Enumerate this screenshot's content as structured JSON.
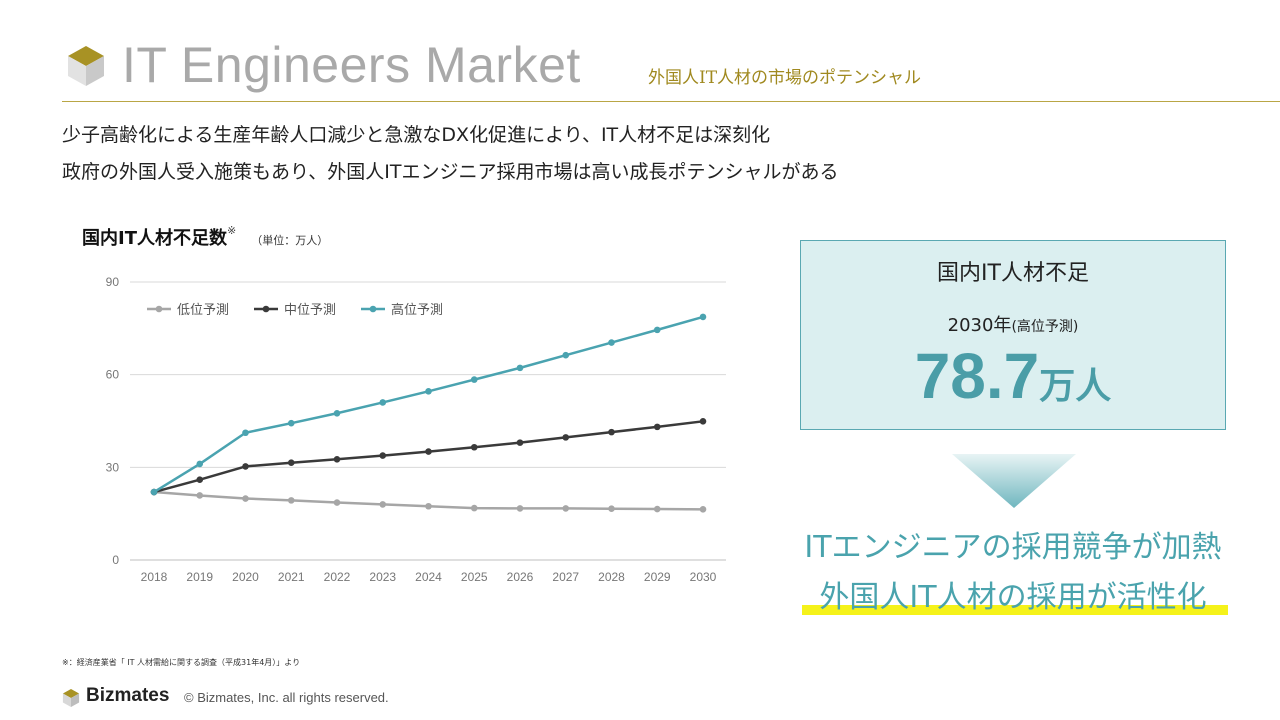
{
  "header": {
    "title": "IT Engineers Market",
    "subtitle": "外国人IT人材の市場のポテンシャル"
  },
  "lead": {
    "line1": "少子高齢化による生産年齢人口減少と急激なDX化促進により、IT人材不足は深刻化",
    "line2": "政府の外国人受入施策もあり、外国人ITエンジニア採用市場は高い成長ポテンシャルがある"
  },
  "chart_header": {
    "title": "国内IT人材不足数",
    "mark": "※",
    "unit": "（単位：万人）"
  },
  "chart_data": {
    "type": "line",
    "categories": [
      "2018",
      "2019",
      "2020",
      "2021",
      "2022",
      "2023",
      "2024",
      "2025",
      "2026",
      "2027",
      "2028",
      "2029",
      "2030"
    ],
    "series": [
      {
        "name": "低位予測",
        "color": "#a6a6a6",
        "values": [
          22.0,
          20.9,
          19.9,
          19.3,
          18.6,
          18.0,
          17.4,
          16.8,
          16.7,
          16.7,
          16.6,
          16.5,
          16.4
        ]
      },
      {
        "name": "中位予測",
        "color": "#3a3a3a",
        "values": [
          22.0,
          26.0,
          30.3,
          31.5,
          32.6,
          33.8,
          35.1,
          36.5,
          38.0,
          39.7,
          41.4,
          43.1,
          44.9
        ]
      },
      {
        "name": "高位予測",
        "color": "#4aa3b0",
        "values": [
          22.0,
          31.1,
          41.2,
          44.3,
          47.5,
          51.0,
          54.6,
          58.4,
          62.2,
          66.3,
          70.4,
          74.5,
          78.7
        ]
      }
    ],
    "ylim": [
      0,
      90
    ],
    "yticks": [
      0,
      30,
      60,
      90
    ],
    "grid": true,
    "legend": "top-left"
  },
  "kpi": {
    "label": "国内IT人材不足",
    "year": "2030年",
    "year_note": "(高位予測)",
    "value": "78.7",
    "unit": "万人"
  },
  "result": {
    "line1": "ITエンジニアの採用競争が加熱",
    "line2": "外国人IT人材の採用が活性化"
  },
  "footer": {
    "source": "※：経済産業省「 IT 人材需給に関する調査（平成31年4月）」より",
    "brand": "Bizmates",
    "copyright": "© Bizmates, Inc. all rights reserved."
  },
  "colors": {
    "gold": "#b9a645",
    "teal": "#4aa3ad",
    "highlight": "#f5f21a"
  }
}
